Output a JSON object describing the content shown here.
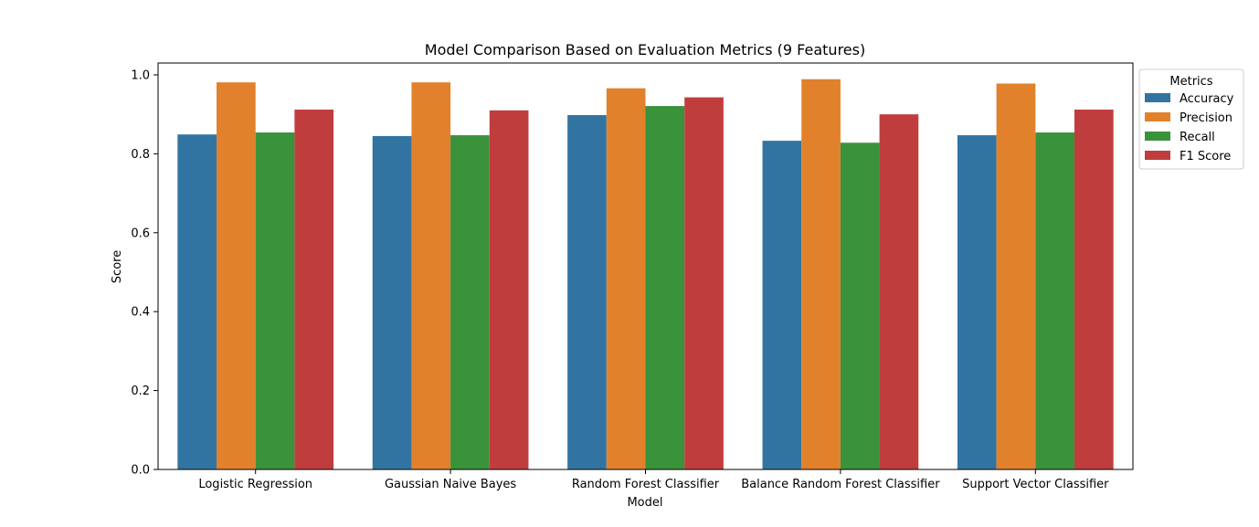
{
  "chart_data": {
    "type": "bar",
    "title": "Model Comparison Based on Evaluation Metrics (9 Features)",
    "xlabel": "Model",
    "ylabel": "Score",
    "ylim": [
      0,
      1.03
    ],
    "yticks": [
      "0.0",
      "0.2",
      "0.4",
      "0.6",
      "0.8",
      "1.0"
    ],
    "categories": [
      "Logistic Regression",
      "Gaussian Naive Bayes",
      "Random Forest Classifier",
      "Balance Random Forest Classifier",
      "Support Vector Classifier"
    ],
    "series": [
      {
        "name": "Accuracy",
        "color": "#3274a1",
        "values": [
          0.849,
          0.845,
          0.898,
          0.833,
          0.847
        ]
      },
      {
        "name": "Precision",
        "color": "#e1812c",
        "values": [
          0.981,
          0.981,
          0.966,
          0.989,
          0.978
        ]
      },
      {
        "name": "Recall",
        "color": "#3a923a",
        "values": [
          0.854,
          0.847,
          0.921,
          0.828,
          0.854
        ]
      },
      {
        "name": "F1 Score",
        "color": "#c03d3e",
        "values": [
          0.912,
          0.91,
          0.943,
          0.9,
          0.912
        ]
      }
    ],
    "legend": {
      "title": "Metrics",
      "placement": "outside-right-top"
    },
    "grid": false
  }
}
